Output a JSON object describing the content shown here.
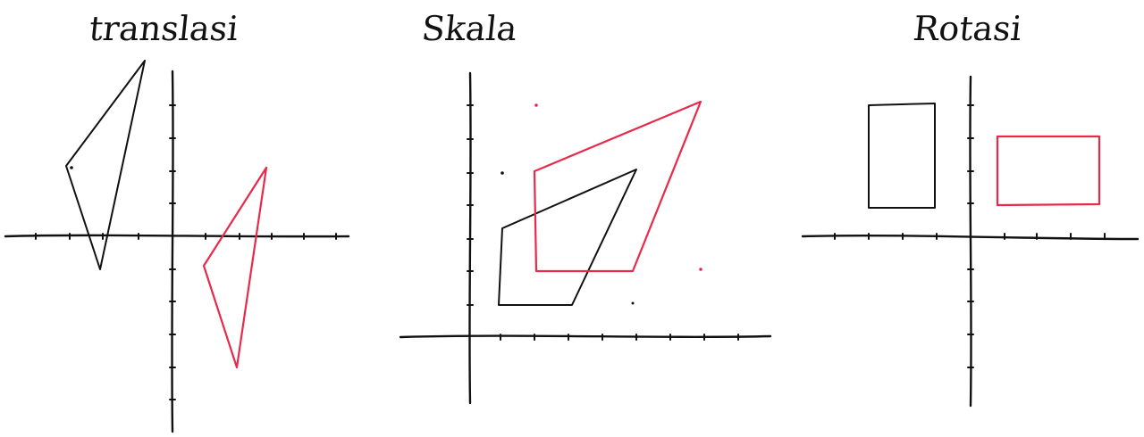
{
  "panels": [
    {
      "id": "translasi",
      "title": "translasi"
    },
    {
      "id": "skala",
      "title": "Skala"
    },
    {
      "id": "rotasi",
      "title": "Rotasi"
    }
  ],
  "colors": {
    "ink": "#111111",
    "accent": "#e8294a",
    "background": "#ffffff"
  }
}
